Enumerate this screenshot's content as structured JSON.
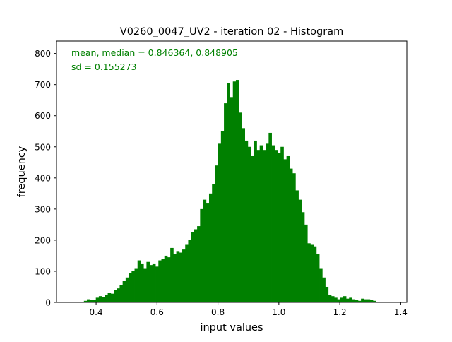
{
  "chart_data": {
    "type": "bar",
    "title": "V0260_0047_UV2 - iteration 02 - Histogram",
    "xlabel": "input values",
    "ylabel": "frequency",
    "xlim": [
      0.27,
      1.42
    ],
    "ylim": [
      0,
      840
    ],
    "xticks": [
      0.4,
      0.6,
      0.8,
      1.0,
      1.2,
      1.4
    ],
    "xtick_labels": [
      "0.4",
      "0.6",
      "0.8",
      "1.0",
      "1.2",
      "1.4"
    ],
    "yticks": [
      0,
      100,
      200,
      300,
      400,
      500,
      600,
      700,
      800
    ],
    "ytick_labels": [
      "0",
      "100",
      "200",
      "300",
      "400",
      "500",
      "600",
      "700",
      "800"
    ],
    "grid": false,
    "bar_color": "#008000",
    "annotations": [
      "mean, median = 0.846364, 0.848905",
      "sd = 0.155273"
    ],
    "bin_start": 0.36,
    "bin_width": 0.00978,
    "values": [
      5,
      10,
      8,
      7,
      15,
      20,
      18,
      25,
      30,
      28,
      40,
      45,
      55,
      70,
      80,
      95,
      100,
      110,
      135,
      125,
      110,
      130,
      120,
      125,
      115,
      135,
      140,
      150,
      145,
      175,
      155,
      165,
      160,
      170,
      185,
      200,
      225,
      235,
      245,
      300,
      330,
      320,
      350,
      380,
      440,
      510,
      550,
      640,
      705,
      660,
      710,
      715,
      610,
      560,
      520,
      500,
      470,
      520,
      490,
      505,
      490,
      510,
      545,
      505,
      490,
      480,
      500,
      460,
      470,
      430,
      415,
      360,
      330,
      290,
      250,
      190,
      185,
      180,
      155,
      110,
      80,
      50,
      25,
      20,
      15,
      10,
      15,
      20,
      12,
      15,
      10,
      8,
      5,
      12,
      10,
      10,
      8,
      5
    ]
  }
}
